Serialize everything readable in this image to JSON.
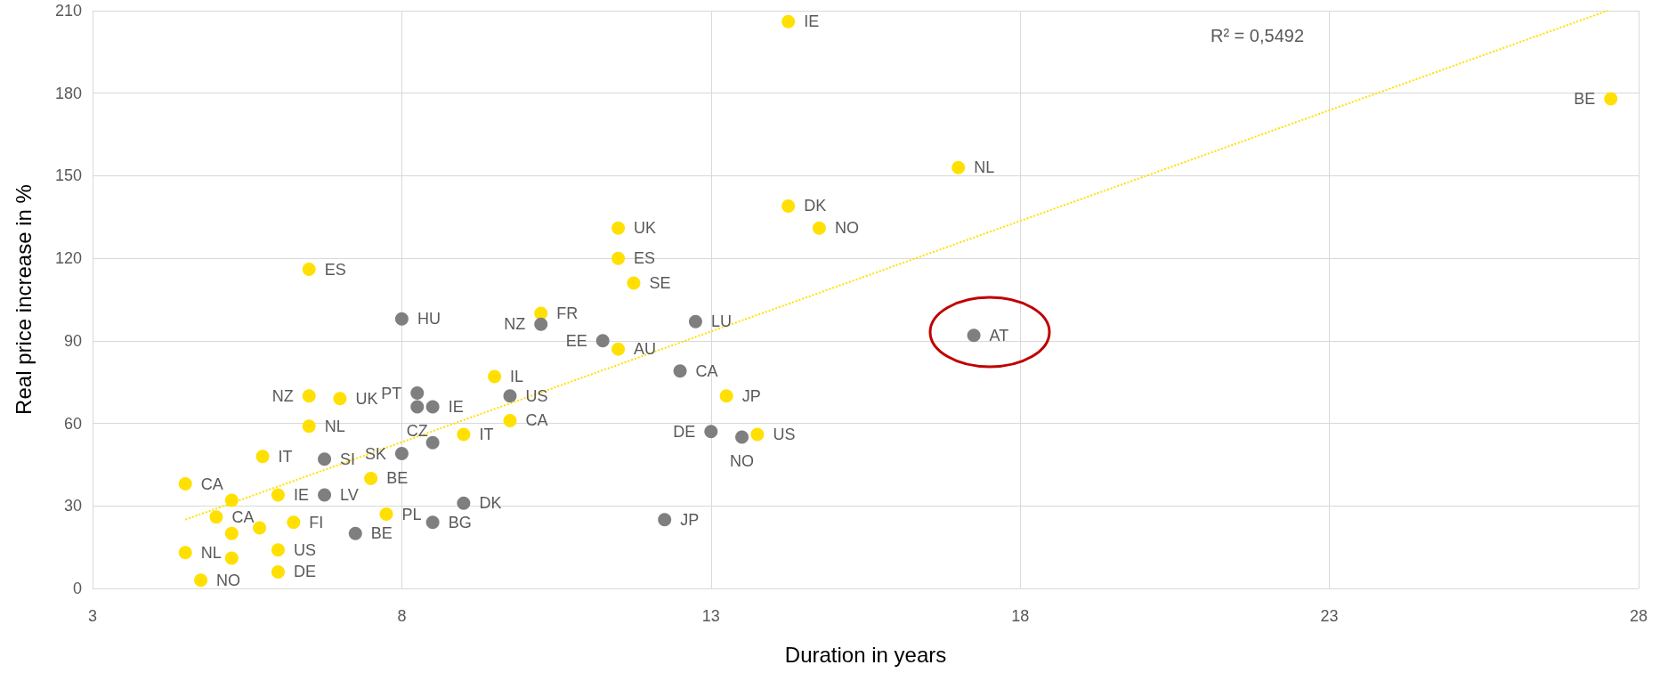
{
  "chart_data": {
    "type": "scatter",
    "xlabel": "Duration in years",
    "ylabel": "Real price increase in %",
    "xlim": [
      3,
      28
    ],
    "xticks": [
      3,
      8,
      13,
      18,
      23,
      28
    ],
    "ylim": [
      0,
      210
    ],
    "yticks": [
      0,
      30,
      60,
      90,
      120,
      150,
      180,
      210
    ],
    "grid": true,
    "marker": "circle",
    "annotations": [
      "R² = 0,5492"
    ],
    "series": [
      {
        "color": "#ffe000",
        "x": [
          14.25,
          27.55,
          17.0,
          14.25,
          14.75,
          11.5,
          11.5,
          11.75,
          6.5,
          10.25,
          11.5,
          9.5,
          6.5,
          7.0,
          9.75,
          13.25,
          6.5,
          9.0,
          13.75,
          5.75,
          4.5,
          7.5,
          6.0,
          5.25,
          7.75,
          5.0,
          6.25,
          5.7,
          5.25,
          4.5,
          6.0,
          5.25,
          6.0,
          4.75
        ],
        "values": [
          206,
          178,
          153,
          139,
          131,
          131,
          120,
          111,
          116,
          100,
          87,
          77,
          70,
          69,
          61,
          70,
          59,
          56,
          56,
          48,
          38,
          40,
          34,
          32,
          27,
          26,
          24,
          22,
          20,
          13,
          14,
          11,
          6,
          3
        ],
        "value_labels": [
          "IE",
          "BE",
          "NL",
          "DK",
          "NO",
          "UK",
          "ES",
          "SE",
          "ES",
          "FR",
          "AU",
          "IL",
          "NZ",
          "UK",
          "CA",
          "JP",
          "NL",
          "IT",
          "US",
          "IT",
          "CA",
          "BE",
          "IE",
          null,
          "PL",
          "CA",
          "FI",
          null,
          null,
          "NL",
          "US",
          null,
          "DE",
          "NO"
        ]
      },
      {
        "color": "#7f7f7f",
        "x": [
          8.0,
          10.25,
          11.25,
          12.75,
          17.25,
          12.5,
          8.25,
          9.75,
          8.25,
          8.5,
          13.0,
          13.5,
          8.5,
          6.75,
          8.0,
          6.75,
          9.0,
          12.25,
          8.5,
          7.25
        ],
        "values": [
          98,
          96,
          90,
          97,
          92,
          79,
          71,
          70,
          66,
          66,
          57,
          55,
          53,
          47,
          49,
          34,
          31,
          25,
          24,
          20
        ],
        "value_labels": [
          "HU",
          "NZ",
          "EE",
          "LU",
          "AT",
          "CA",
          "PT",
          "US",
          "CZ",
          "IE",
          "DE",
          "NO",
          null,
          "SI",
          "SK",
          "LV",
          "DK",
          "JP",
          "BG",
          "BE"
        ]
      },
      {
        "type": "line",
        "color": "#ffe000",
        "line_style": "dotted",
        "marker": "none",
        "x": [
          4.5,
          27.5
        ],
        "values": [
          25,
          210
        ]
      }
    ]
  }
}
